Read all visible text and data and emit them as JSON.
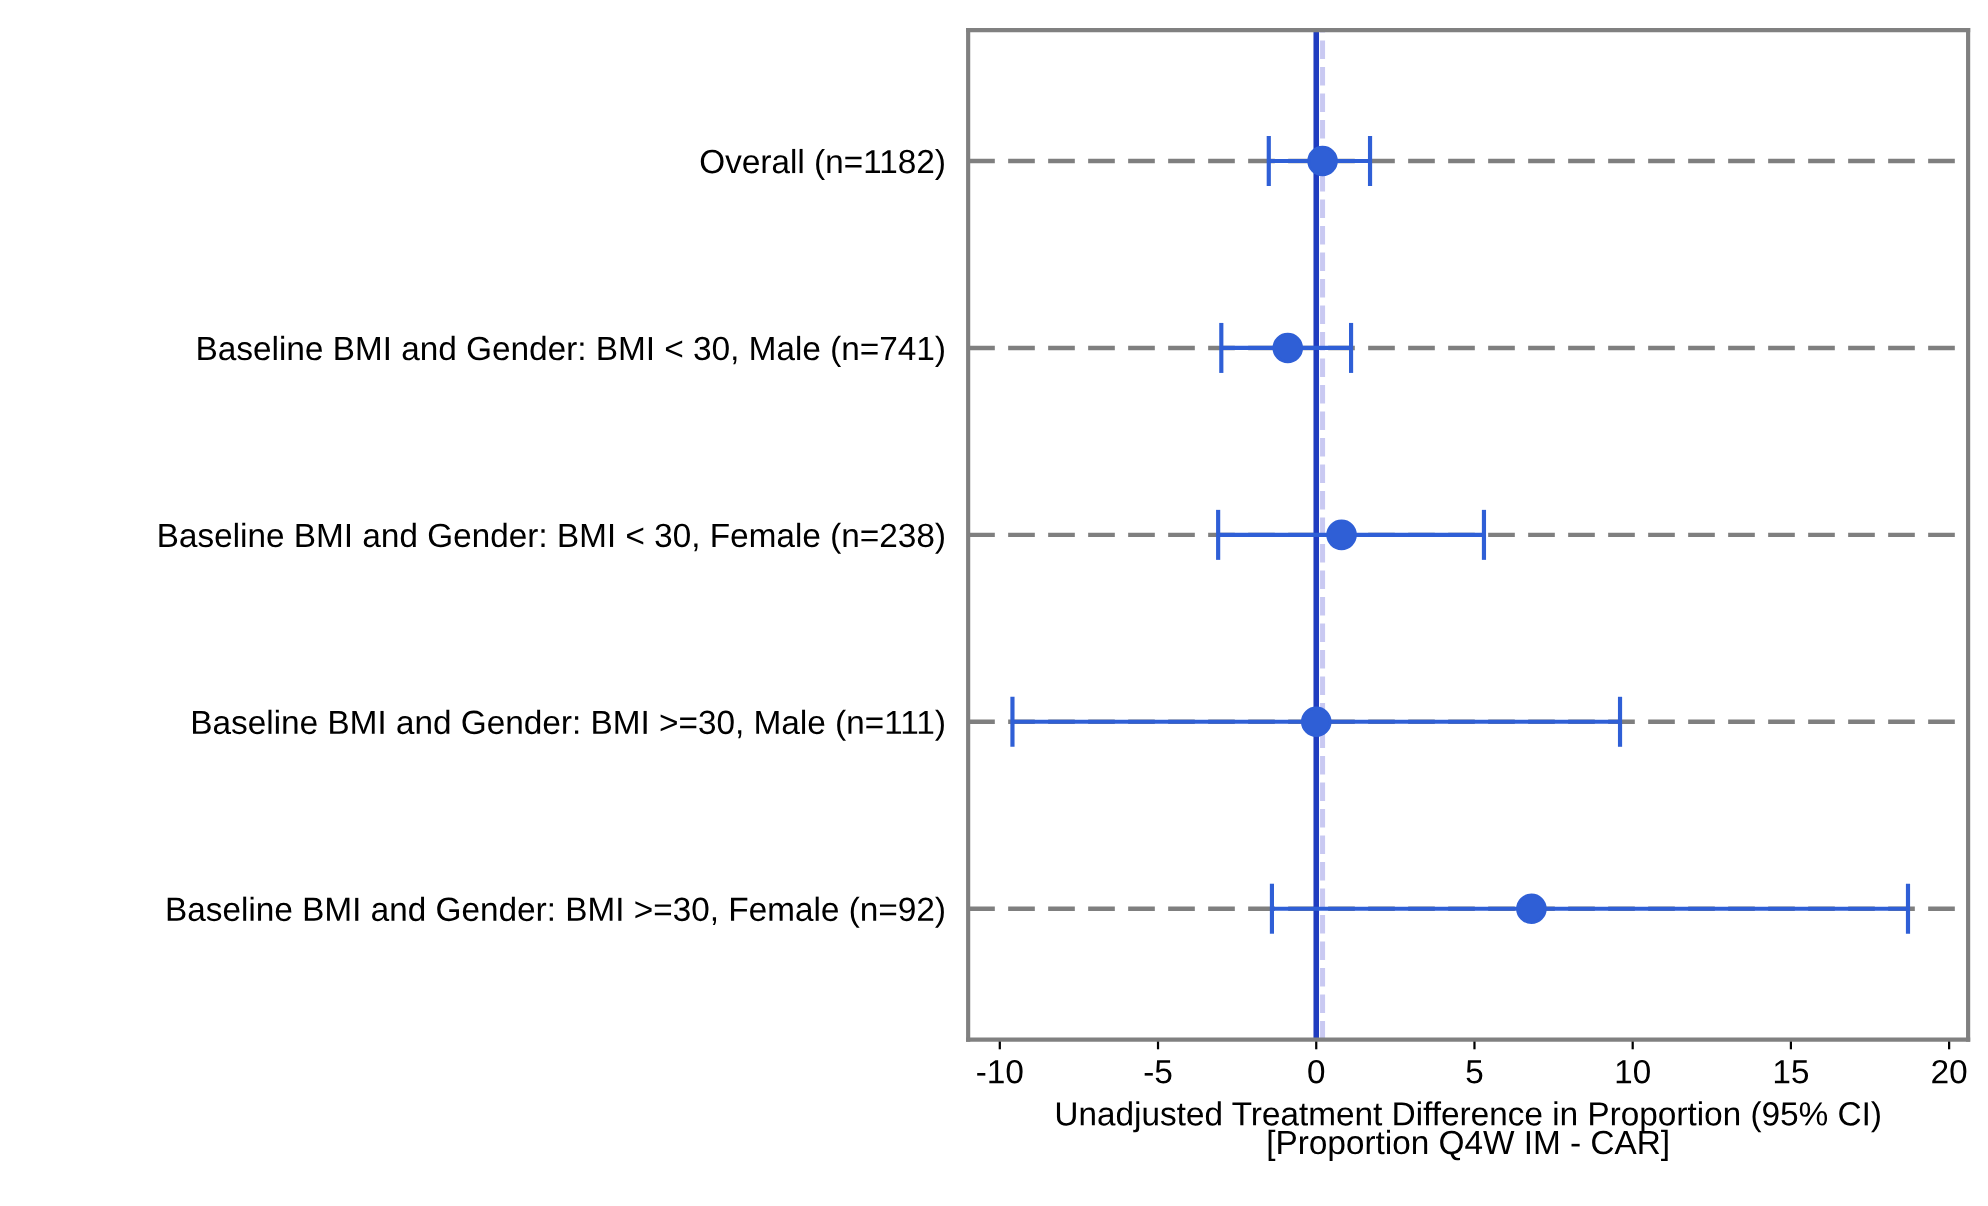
{
  "chart_data": {
    "type": "scatter",
    "orientation": "horizontal",
    "xlabel": "Unadjusted Treatment Difference in Proportion (95% CI)\n[Proportion Q4W IM - CAR]",
    "categories": [
      "Overall (n=1182)",
      "Baseline BMI and Gender: BMI < 30, Male (n=741)",
      "Baseline BMI and Gender: BMI < 30, Female (n=238)",
      "Baseline BMI and Gender: BMI >=30, Male (n=111)",
      "Baseline BMI and Gender: BMI >=30, Female (n=92)"
    ],
    "series": [
      {
        "color": "#2f5fd6",
        "values": [
          0.2,
          -0.9,
          0.8,
          0.0,
          6.8
        ],
        "errors": [
          [
            -1.5,
            1.7
          ],
          [
            -3.0,
            1.1
          ],
          [
            -3.1,
            5.3
          ],
          [
            -9.6,
            9.6
          ],
          [
            -1.4,
            18.7
          ]
        ]
      }
    ],
    "xlim": [
      -11,
      20.6
    ],
    "xticks": [
      -10,
      -5,
      0,
      5,
      10,
      15,
      20
    ],
    "ref_lines": [
      {
        "axis": "x",
        "value": 0,
        "color": "#1f3cc0",
        "line_style": "solid"
      },
      {
        "axis": "x",
        "value": 0.2,
        "color": "#c9c9f2",
        "line_style": "dashed"
      }
    ],
    "grid": "y",
    "marker": "circle",
    "line_style": "none"
  }
}
